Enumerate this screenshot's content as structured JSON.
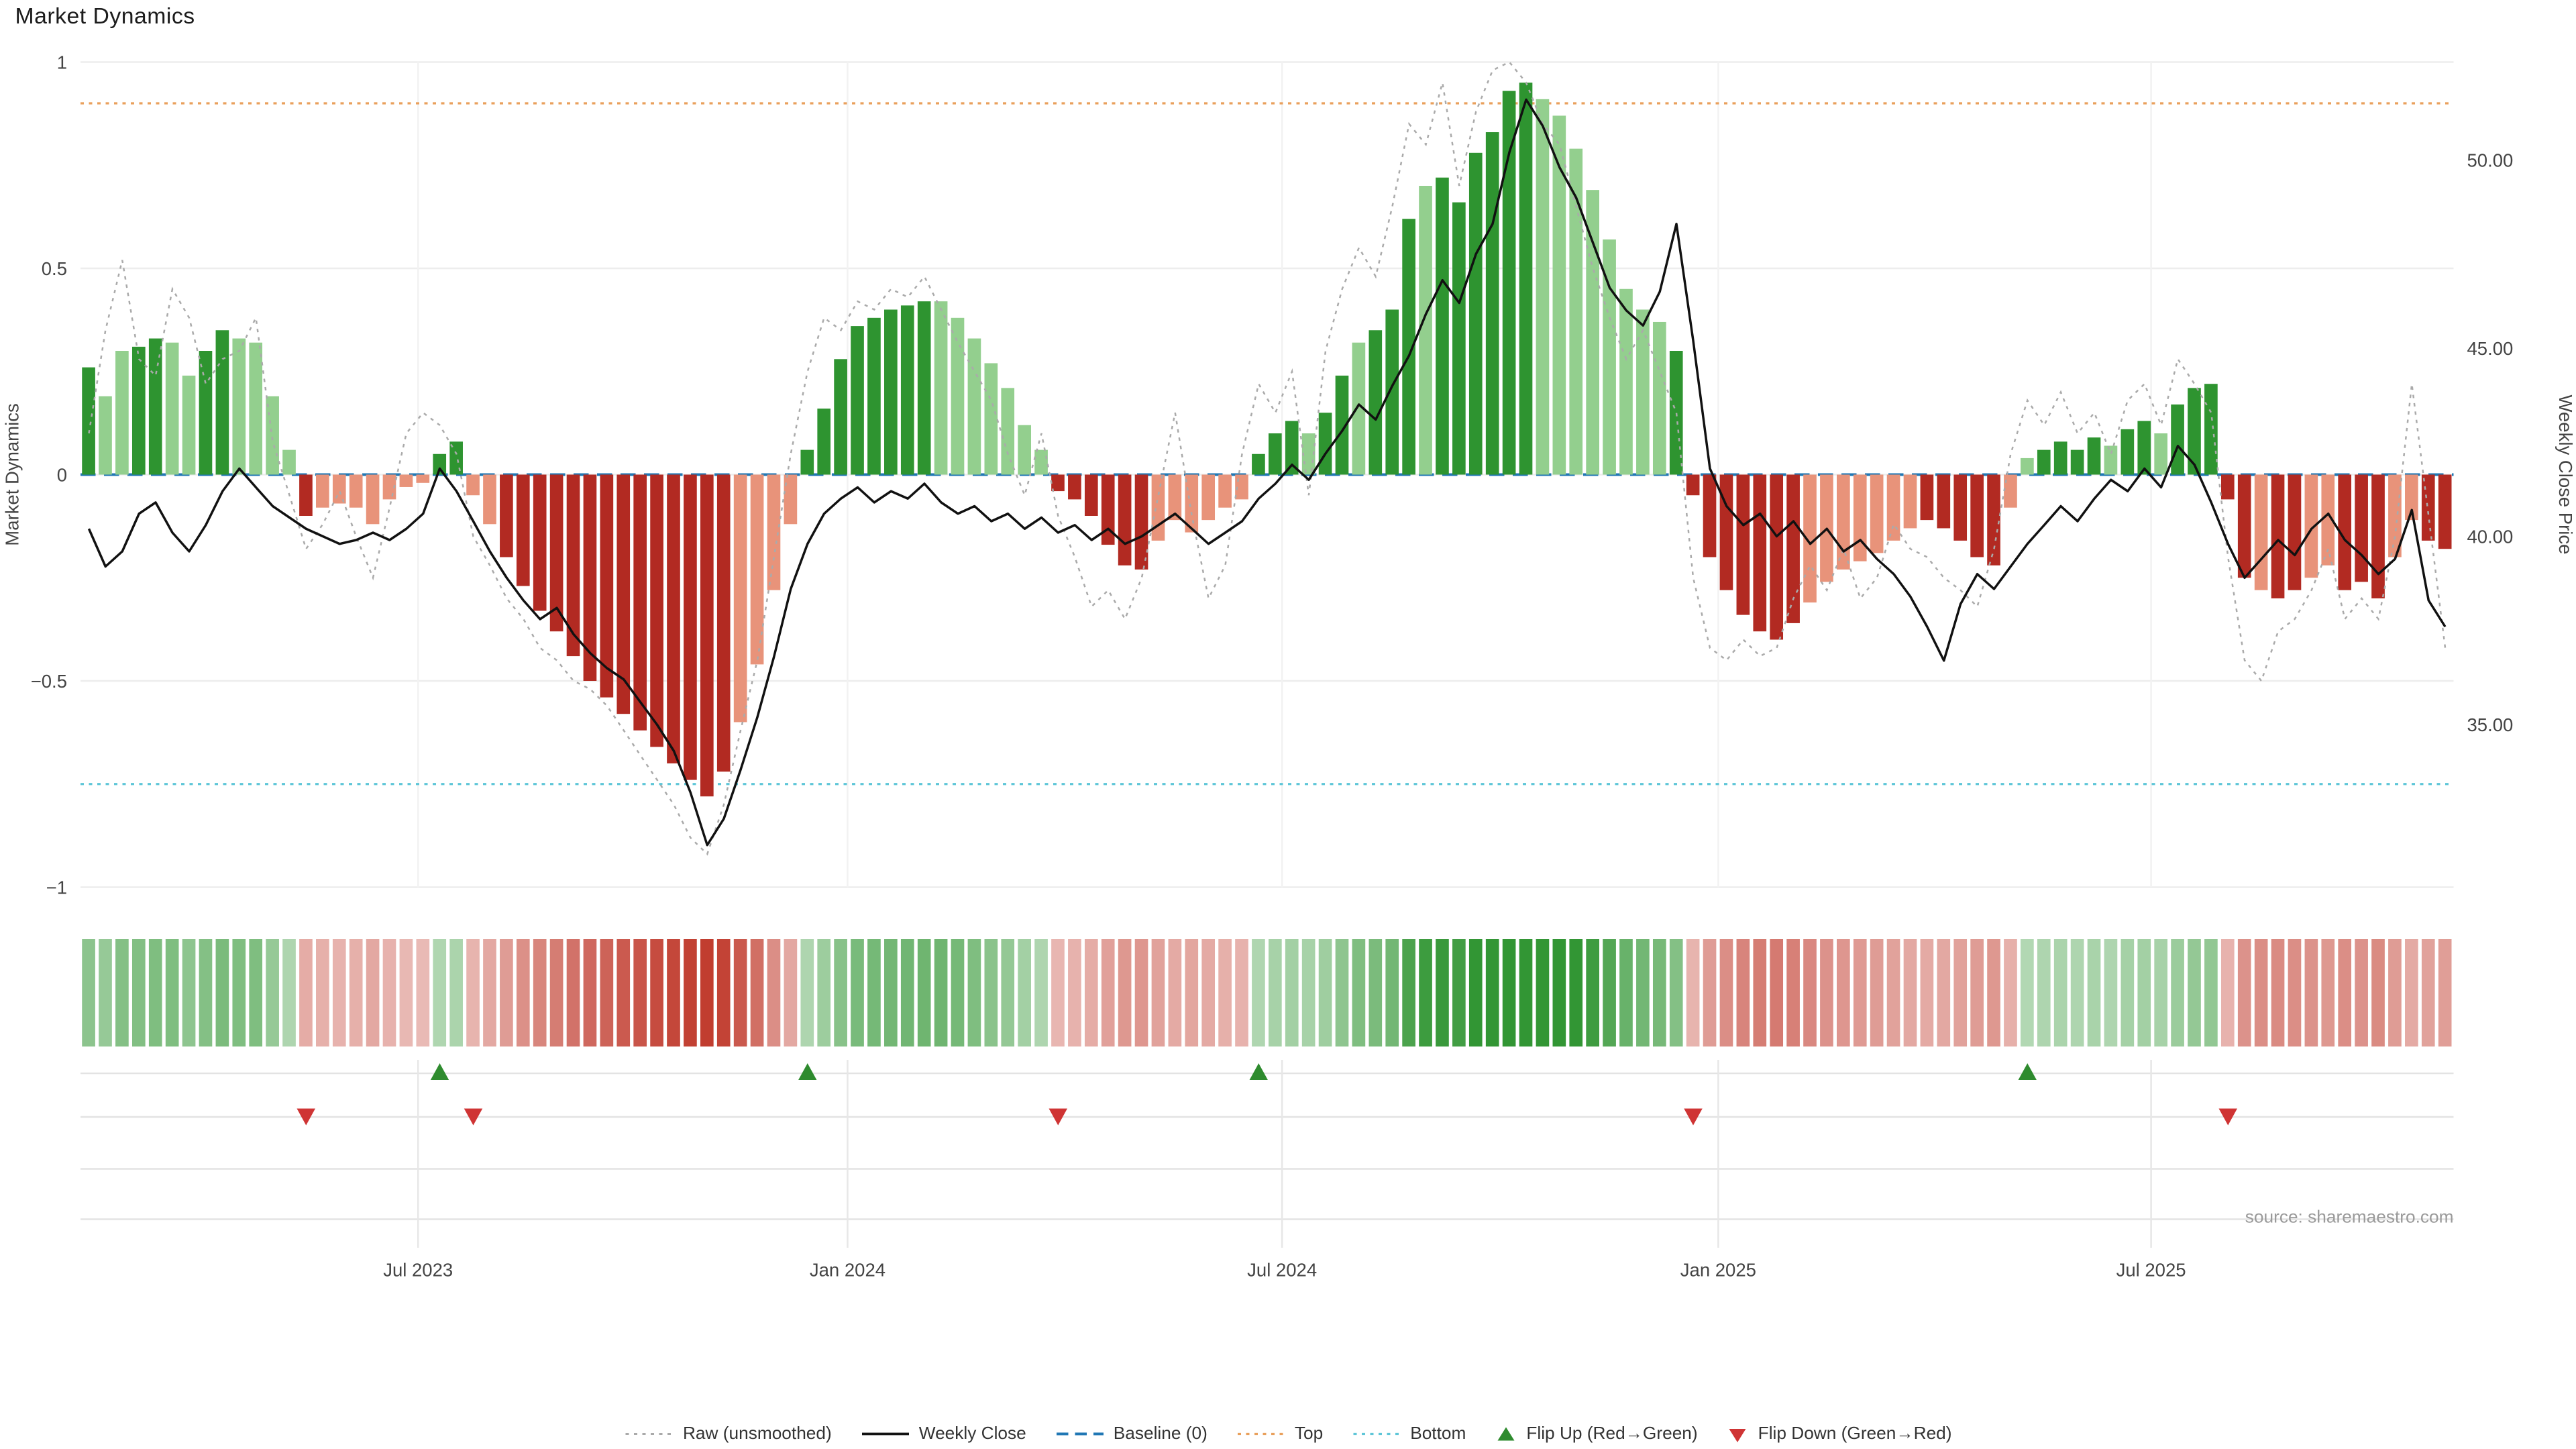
{
  "title": "Market Dynamics",
  "source": "source: sharemaestro.com",
  "axes": {
    "left_label": "Market Dynamics",
    "right_label": "Weekly Close Price",
    "left_ticks": [
      "1",
      "0.5",
      "0",
      "−0.5",
      "−1"
    ],
    "right_ticks": [
      "50.00",
      "45.00",
      "40.00",
      "35.00"
    ],
    "x_ticks": [
      "Jul 2023",
      "Jan 2024",
      "Jul 2024",
      "Jan 2025",
      "Jul 2025"
    ]
  },
  "colors": {
    "dark_green": "#2e9430",
    "light_green": "#93cf8e",
    "dark_red": "#b22a22",
    "light_red": "#e8937a",
    "heat_red": "#c0392b",
    "baseline_blue": "#2077b4",
    "top_orange": "#e9a05c",
    "bottom_cyan": "#5fc6d8",
    "raw_gray": "#aaaaaa",
    "close_black": "#111111",
    "flip_up_green": "#2e8b2e",
    "flip_down_red": "#cf3434"
  },
  "legend": [
    {
      "label": "Raw (unsmoothed)",
      "swatch": "dotted-line",
      "color_key": "raw_gray"
    },
    {
      "label": "Weekly Close",
      "swatch": "solid-line",
      "color_key": "close_black"
    },
    {
      "label": "Baseline (0)",
      "swatch": "dashed-line",
      "color_key": "baseline_blue"
    },
    {
      "label": "Top",
      "swatch": "dotted-line",
      "color_key": "top_orange"
    },
    {
      "label": "Bottom",
      "swatch": "dotted-line",
      "color_key": "bottom_cyan"
    },
    {
      "label": "Flip Up (Red→Green)",
      "swatch": "triangle-up",
      "color_key": "flip_up_green"
    },
    {
      "label": "Flip Down (Green→Red)",
      "swatch": "triangle-down",
      "color_key": "flip_down_red"
    }
  ],
  "chart_data": {
    "type": "bar+line",
    "title": "Market Dynamics",
    "left_ylim": [
      -1,
      1
    ],
    "left_tick_values": [
      1,
      0.5,
      0,
      -0.5,
      -1
    ],
    "right_price_ticks": [
      50,
      45,
      40,
      35
    ],
    "x_tick_labels": [
      "Jul 2023",
      "Jan 2024",
      "Jul 2024",
      "Jan 2025",
      "Jul 2025"
    ],
    "x_tick_indices": [
      20.2,
      45.9,
      71.9,
      98.0,
      123.9
    ],
    "x_unit": "week",
    "series": [
      {
        "name": "Market Dynamics (bars)",
        "type": "bar",
        "axis": "left",
        "values": [
          0.26,
          0.19,
          0.3,
          0.31,
          0.33,
          0.32,
          0.24,
          0.3,
          0.35,
          0.33,
          0.32,
          0.19,
          0.06,
          -0.1,
          -0.08,
          -0.07,
          -0.08,
          -0.12,
          -0.06,
          -0.03,
          -0.02,
          0.05,
          0.08,
          -0.05,
          -0.12,
          -0.2,
          -0.27,
          -0.33,
          -0.38,
          -0.44,
          -0.5,
          -0.54,
          -0.58,
          -0.62,
          -0.66,
          -0.7,
          -0.74,
          -0.78,
          -0.72,
          -0.6,
          -0.46,
          -0.28,
          -0.12,
          0.06,
          0.16,
          0.28,
          0.36,
          0.38,
          0.4,
          0.41,
          0.42,
          0.42,
          0.38,
          0.33,
          0.27,
          0.21,
          0.12,
          0.06,
          -0.04,
          -0.06,
          -0.1,
          -0.17,
          -0.22,
          -0.23,
          -0.16,
          -0.11,
          -0.14,
          -0.11,
          -0.08,
          -0.06,
          0.05,
          0.1,
          0.13,
          0.1,
          0.15,
          0.24,
          0.32,
          0.35,
          0.4,
          0.62,
          0.7,
          0.72,
          0.66,
          0.78,
          0.83,
          0.93,
          0.95,
          0.91,
          0.87,
          0.79,
          0.69,
          0.57,
          0.45,
          0.4,
          0.37,
          0.3,
          -0.05,
          -0.2,
          -0.28,
          -0.34,
          -0.38,
          -0.4,
          -0.36,
          -0.31,
          -0.26,
          -0.23,
          -0.21,
          -0.19,
          -0.16,
          -0.13,
          -0.11,
          -0.13,
          -0.16,
          -0.2,
          -0.22,
          -0.08,
          0.04,
          0.06,
          0.08,
          0.06,
          0.09,
          0.07,
          0.11,
          0.13,
          0.1,
          0.17,
          0.21,
          0.22,
          -0.06,
          -0.25,
          -0.28,
          -0.3,
          -0.28,
          -0.25,
          -0.22,
          -0.28,
          -0.26,
          -0.3,
          -0.2,
          -0.11,
          -0.16,
          -0.18
        ],
        "bar_colors": [
          "G",
          "g",
          "g",
          "G",
          "G",
          "g",
          "g",
          "G",
          "G",
          "g",
          "g",
          "g",
          "g",
          "R",
          "r",
          "r",
          "r",
          "r",
          "r",
          "r",
          "r",
          "G",
          "G",
          "r",
          "r",
          "R",
          "R",
          "R",
          "R",
          "R",
          "R",
          "R",
          "R",
          "R",
          "R",
          "R",
          "R",
          "R",
          "R",
          "r",
          "r",
          "r",
          "r",
          "G",
          "G",
          "G",
          "G",
          "G",
          "G",
          "G",
          "G",
          "g",
          "g",
          "g",
          "g",
          "g",
          "g",
          "g",
          "R",
          "R",
          "R",
          "R",
          "R",
          "R",
          "r",
          "r",
          "r",
          "r",
          "r",
          "r",
          "G",
          "G",
          "G",
          "g",
          "G",
          "G",
          "g",
          "G",
          "G",
          "G",
          "g",
          "G",
          "G",
          "G",
          "G",
          "G",
          "G",
          "g",
          "g",
          "g",
          "g",
          "g",
          "g",
          "g",
          "g",
          "G",
          "R",
          "R",
          "R",
          "R",
          "R",
          "R",
          "R",
          "r",
          "r",
          "r",
          "r",
          "r",
          "r",
          "r",
          "R",
          "R",
          "R",
          "R",
          "R",
          "r",
          "g",
          "G",
          "G",
          "G",
          "G",
          "g",
          "G",
          "G",
          "g",
          "G",
          "G",
          "G",
          "R",
          "R",
          "r",
          "R",
          "R",
          "r",
          "r",
          "R",
          "R",
          "R",
          "r",
          "r",
          "R",
          "R"
        ]
      },
      {
        "name": "Raw (unsmoothed)",
        "type": "line",
        "style": "dotted",
        "axis": "left",
        "values": [
          0.1,
          0.35,
          0.52,
          0.28,
          0.24,
          0.45,
          0.38,
          0.22,
          0.28,
          0.3,
          0.38,
          0.08,
          -0.05,
          -0.18,
          -0.12,
          -0.04,
          -0.15,
          -0.25,
          -0.08,
          0.1,
          0.15,
          0.12,
          0.05,
          -0.15,
          -0.22,
          -0.3,
          -0.35,
          -0.42,
          -0.45,
          -0.5,
          -0.52,
          -0.56,
          -0.62,
          -0.68,
          -0.74,
          -0.8,
          -0.88,
          -0.92,
          -0.8,
          -0.62,
          -0.45,
          -0.2,
          0.05,
          0.25,
          0.38,
          0.35,
          0.42,
          0.4,
          0.45,
          0.43,
          0.48,
          0.4,
          0.32,
          0.25,
          0.18,
          0.05,
          -0.05,
          0.1,
          -0.1,
          -0.2,
          -0.32,
          -0.28,
          -0.35,
          -0.25,
          -0.05,
          0.15,
          -0.1,
          -0.3,
          -0.22,
          0.05,
          0.22,
          0.15,
          0.25,
          -0.05,
          0.3,
          0.45,
          0.55,
          0.48,
          0.65,
          0.85,
          0.8,
          0.95,
          0.7,
          0.88,
          0.98,
          1.0,
          0.95,
          0.85,
          0.8,
          0.65,
          0.5,
          0.38,
          0.28,
          0.35,
          0.25,
          0.15,
          -0.25,
          -0.42,
          -0.45,
          -0.4,
          -0.44,
          -0.42,
          -0.3,
          -0.22,
          -0.28,
          -0.18,
          -0.3,
          -0.25,
          -0.12,
          -0.18,
          -0.2,
          -0.25,
          -0.28,
          -0.32,
          -0.18,
          0.05,
          0.18,
          0.12,
          0.2,
          0.1,
          0.15,
          0.05,
          0.18,
          0.22,
          0.12,
          0.28,
          0.22,
          0.15,
          -0.2,
          -0.45,
          -0.5,
          -0.38,
          -0.35,
          -0.28,
          -0.18,
          -0.35,
          -0.3,
          -0.35,
          -0.15,
          0.22,
          -0.1,
          -0.42
        ]
      },
      {
        "name": "Weekly Close",
        "type": "line",
        "axis": "right",
        "values": [
          40.2,
          39.2,
          39.6,
          40.6,
          40.9,
          40.1,
          39.6,
          40.3,
          41.2,
          41.8,
          41.3,
          40.8,
          40.5,
          40.2,
          40.0,
          39.8,
          39.9,
          40.1,
          39.9,
          40.2,
          40.6,
          41.8,
          41.2,
          40.4,
          39.6,
          38.9,
          38.3,
          37.8,
          38.1,
          37.4,
          36.9,
          36.5,
          36.2,
          35.6,
          35.0,
          34.3,
          33.2,
          31.8,
          32.5,
          33.8,
          35.2,
          36.8,
          38.6,
          39.8,
          40.6,
          41.0,
          41.3,
          40.9,
          41.2,
          41.0,
          41.4,
          40.9,
          40.6,
          40.8,
          40.4,
          40.6,
          40.2,
          40.5,
          40.1,
          40.3,
          39.9,
          40.2,
          39.8,
          40.0,
          40.3,
          40.6,
          40.2,
          39.8,
          40.1,
          40.4,
          41.0,
          41.4,
          41.9,
          41.5,
          42.2,
          42.8,
          43.5,
          43.1,
          44.0,
          44.8,
          45.9,
          46.8,
          46.2,
          47.5,
          48.3,
          50.2,
          51.6,
          50.9,
          49.8,
          49.0,
          47.8,
          46.6,
          46.0,
          45.6,
          46.5,
          48.3,
          45.2,
          41.8,
          40.8,
          40.3,
          40.6,
          40.0,
          40.4,
          39.8,
          40.2,
          39.6,
          39.9,
          39.4,
          39.0,
          38.4,
          37.6,
          36.7,
          38.2,
          39.0,
          38.6,
          39.2,
          39.8,
          40.3,
          40.8,
          40.4,
          41.0,
          41.5,
          41.2,
          41.8,
          41.3,
          42.4,
          41.9,
          40.9,
          39.8,
          38.9,
          39.4,
          39.9,
          39.5,
          40.2,
          40.6,
          39.9,
          39.5,
          39.0,
          39.4,
          40.7,
          38.3,
          37.6
        ]
      }
    ],
    "reference_lines": [
      {
        "name": "Baseline (0)",
        "axis": "left",
        "value": 0,
        "style": "dashed",
        "color": "#2077b4"
      },
      {
        "name": "Top",
        "axis": "left",
        "value": 0.9,
        "style": "dotted",
        "color": "#e9a05c"
      },
      {
        "name": "Bottom",
        "axis": "left",
        "value": -0.75,
        "style": "dotted",
        "color": "#5fc6d8"
      }
    ],
    "flip_markers": {
      "up": [
        21,
        43,
        70,
        116
      ],
      "down": [
        13,
        23,
        58,
        96,
        128
      ]
    },
    "heatmap": "strip of weekly cells colored by bar sign/intensity (green positive, red negative)"
  }
}
